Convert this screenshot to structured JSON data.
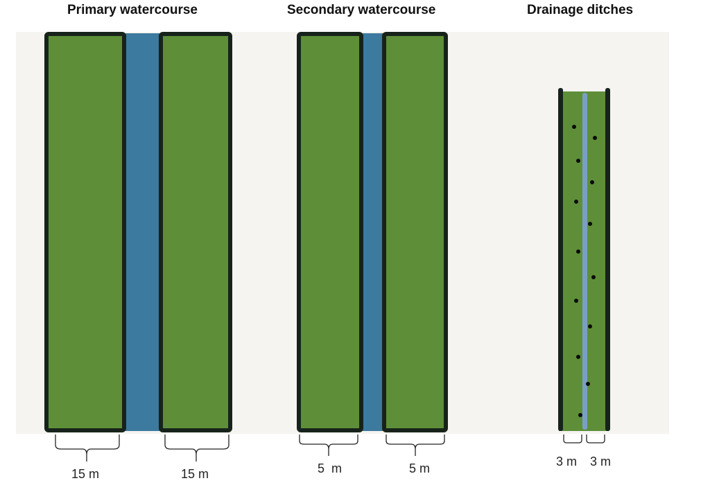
{
  "sections": [
    {
      "title": "Primary watercourse",
      "left_width": "15 m",
      "right_width": "15 m"
    },
    {
      "title": "Secondary watercourse",
      "left_width": "5  m",
      "right_width": "5 m"
    },
    {
      "title": "Drainage ditches",
      "left_width": "3 m",
      "right_width": "3 m"
    }
  ],
  "colors": {
    "buffer_strip": "#5e8f38",
    "strip_outline": "#17231a",
    "water": "#3c7a9f",
    "ditch_water": "#7a9fc4",
    "background": "#f5f4f1"
  }
}
